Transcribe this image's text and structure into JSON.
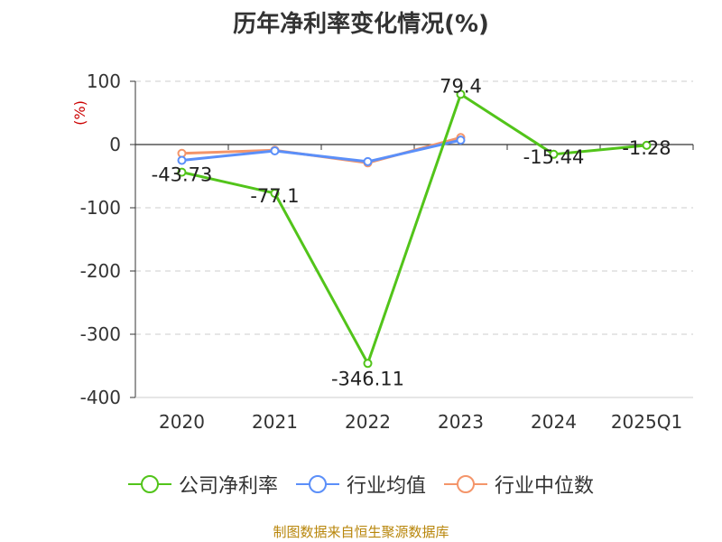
{
  "chart_data": {
    "type": "line",
    "title": "历年净利率变化情况(%)",
    "ylabel": "(%)",
    "categories": [
      "2020",
      "2021",
      "2022",
      "2023",
      "2024",
      "2025Q1"
    ],
    "ylim": [
      -400,
      100
    ],
    "yticks": [
      100,
      0,
      -100,
      -200,
      -300,
      -400
    ],
    "grid": true,
    "legend_position": "bottom",
    "series": [
      {
        "name": "公司净利率",
        "color": "#52c41a",
        "values": [
          -43.73,
          -77.1,
          -346.11,
          79.4,
          -15.44,
          -1.28
        ],
        "labels": [
          "-43.73",
          "-77.1",
          "-346.11",
          "79.4",
          "-15.44",
          "-1.28"
        ]
      },
      {
        "name": "行业均值",
        "color": "#5b8ff9",
        "values": [
          -25,
          -10,
          -27,
          7,
          null,
          null
        ]
      },
      {
        "name": "行业中位数",
        "color": "#f4956a",
        "values": [
          -14,
          -9,
          -29,
          11,
          null,
          null
        ]
      }
    ]
  },
  "footer": {
    "source": "制图数据来自恒生聚源数据库"
  }
}
